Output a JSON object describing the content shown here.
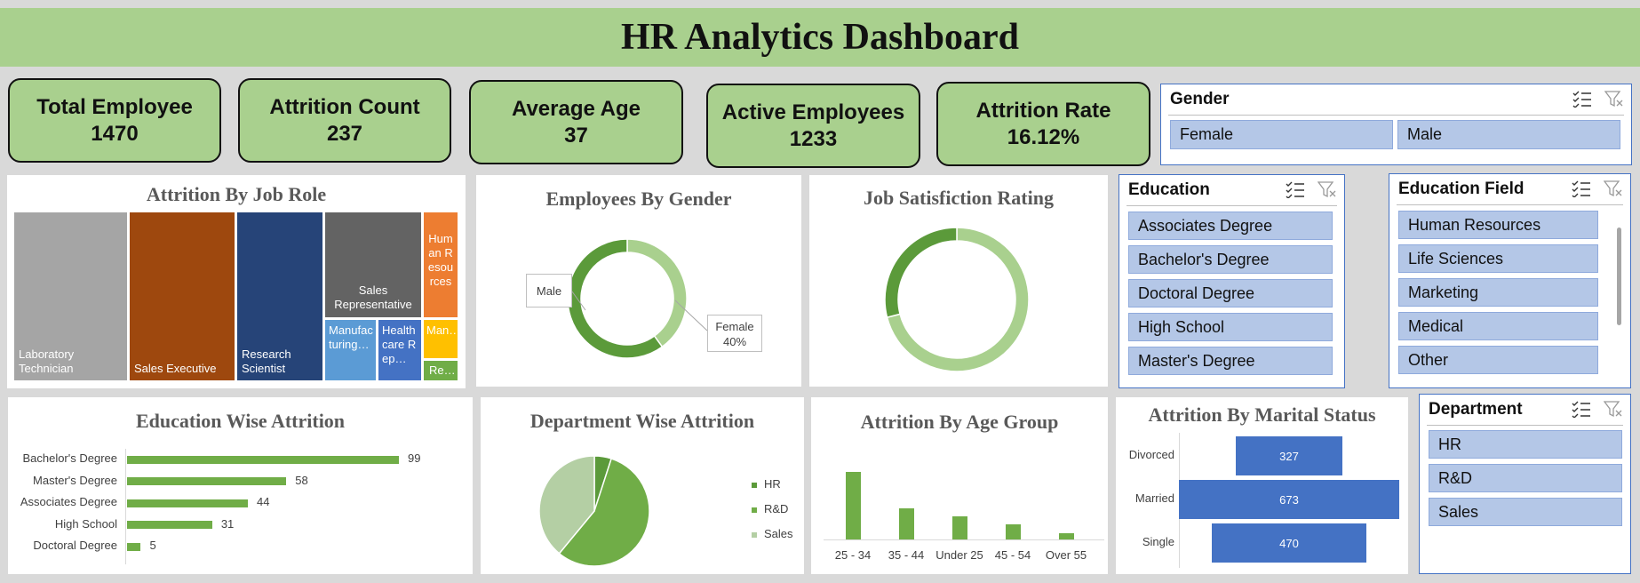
{
  "header": {
    "title": "HR Analytics Dashboard"
  },
  "kpis": [
    {
      "label": "Total Employee",
      "value": "1470"
    },
    {
      "label": "Attrition Count",
      "value": "237"
    },
    {
      "label": "Average Age",
      "value": "37"
    },
    {
      "label": "Active Employees",
      "value": "1233"
    },
    {
      "label": "Attrition Rate",
      "value": "16.12%"
    }
  ],
  "slicers": {
    "gender": {
      "title": "Gender",
      "items": [
        "Female",
        "Male"
      ]
    },
    "education": {
      "title": "Education",
      "items": [
        "Associates Degree",
        "Bachelor's Degree",
        "Doctoral Degree",
        "High School",
        "Master's Degree"
      ]
    },
    "education_field": {
      "title": "Education Field",
      "items": [
        "Human Resources",
        "Life Sciences",
        "Marketing",
        "Medical",
        "Other"
      ]
    },
    "department": {
      "title": "Department",
      "items": [
        "HR",
        "R&D",
        "Sales"
      ]
    }
  },
  "icons": {
    "multiselect": "multi-select-icon",
    "clear_filter": "clear-filter-icon"
  },
  "chart_data": [
    {
      "type": "treemap",
      "title": "Attrition By Job Role",
      "tiles": [
        {
          "label": "Laboratory Technician",
          "color": "#a5a5a5"
        },
        {
          "label": "Sales Executive",
          "color": "#9e480e"
        },
        {
          "label": "Research Scientist",
          "color": "#264478"
        },
        {
          "label": "Sales Representative",
          "color": "#636363"
        },
        {
          "label": "Human Resources",
          "color": "#ed7d31"
        },
        {
          "label": "Manufacturing…",
          "color": "#5b9bd5"
        },
        {
          "label": "Healthcare Rep…",
          "color": "#4472c4"
        },
        {
          "label": "Man…",
          "color": "#ffc000"
        },
        {
          "label": "Re…",
          "color": "#70ad47"
        }
      ]
    },
    {
      "type": "pie",
      "title": "Employees  By Gender",
      "slices": [
        {
          "name": "Male",
          "value": 60,
          "color": "#5b9a3a"
        },
        {
          "name": "Female",
          "value": 40,
          "color": "#a9d08e"
        }
      ],
      "labels": {
        "male": "Male",
        "female": "Female",
        "female_pct": "40%"
      }
    },
    {
      "type": "pie",
      "title": "Job Satisfiction Rating",
      "slices": [
        {
          "value": 71,
          "color": "#a9d08e"
        },
        {
          "value": 29,
          "color": "#5b9a3a"
        }
      ]
    },
    {
      "type": "bar",
      "title": "Education Wise Attrition",
      "categories": [
        "Bachelor's Degree",
        "Master's Degree",
        "Associates Degree",
        "High School",
        "Doctoral Degree"
      ],
      "values": [
        99,
        58,
        44,
        31,
        5
      ],
      "color": "#70ad47"
    },
    {
      "type": "pie",
      "title": "Department Wise Attrition",
      "slices": [
        {
          "name": "HR",
          "value": 5,
          "color": "#5b9a3a"
        },
        {
          "name": "R&D",
          "value": 56,
          "color": "#70ad47"
        },
        {
          "name": "Sales",
          "value": 39,
          "color": "#b4cfa4"
        }
      ]
    },
    {
      "type": "bar",
      "title": "Attrition By Age Group",
      "categories": [
        "25 - 34",
        "35 - 44",
        "Under 25",
        "45 - 54",
        "Over 55"
      ],
      "values": [
        112,
        51,
        38,
        25,
        11
      ],
      "color": "#70ad47"
    },
    {
      "type": "bar",
      "title": "Attrition By Marital Status",
      "categories": [
        "Divorced",
        "Married",
        "Single"
      ],
      "values": [
        327,
        673,
        470
      ],
      "color": "#4472c4"
    }
  ]
}
